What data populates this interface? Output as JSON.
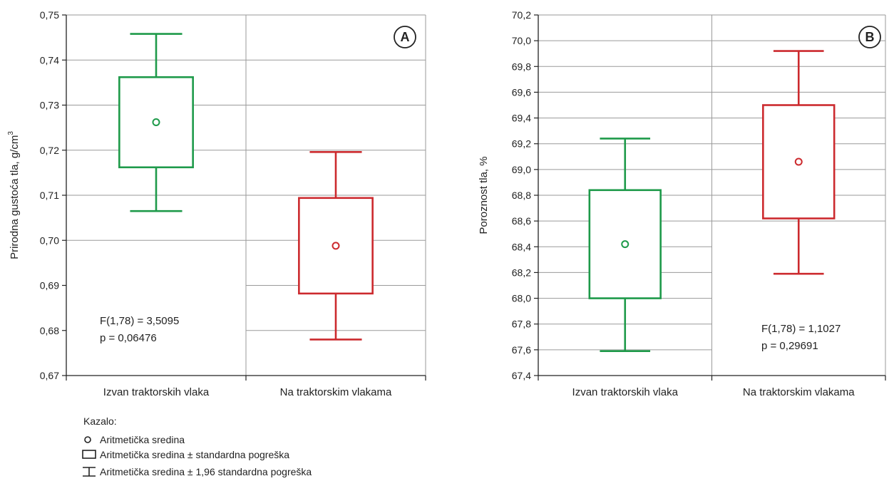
{
  "chart_data": [
    {
      "type": "box",
      "badge": "A",
      "ylabel": "Prirodna gustoća tla,  g/cm",
      "ylabel_sup": "3",
      "ylim": [
        0.67,
        0.75
      ],
      "y_ticks": [
        "0,67",
        "0,68",
        "0,69",
        "0,70",
        "0,71",
        "0,72",
        "0,73",
        "0,74",
        "0,75"
      ],
      "categories": [
        "Izvan traktorskih vlaka",
        "Na traktorskim vlakama"
      ],
      "series": [
        {
          "mean": 0.7262,
          "box_low": 0.7162,
          "box_high": 0.7362,
          "whisker_low": 0.7065,
          "whisker_high": 0.7458,
          "color": "#1e9a4a"
        },
        {
          "mean": 0.6988,
          "box_low": 0.6882,
          "box_high": 0.7094,
          "whisker_low": 0.678,
          "whisker_high": 0.7196,
          "color": "#cc2a2e"
        }
      ],
      "stat_lines": [
        "F(1,78) = 3,5095",
        "p = 0,06476"
      ]
    },
    {
      "type": "box",
      "badge": "B",
      "ylabel": "Poroznost tla,  %",
      "ylim": [
        67.4,
        70.2
      ],
      "y_ticks": [
        "67,4",
        "67,6",
        "67,8",
        "68,0",
        "68,2",
        "68,4",
        "68,6",
        "68,8",
        "69,0",
        "69,2",
        "69,4",
        "69,6",
        "69,8",
        "70,0",
        "70,2"
      ],
      "categories": [
        "Izvan traktorskih vlaka",
        "Na traktorskim vlakama"
      ],
      "series": [
        {
          "mean": 68.42,
          "box_low": 68.0,
          "box_high": 68.84,
          "whisker_low": 67.59,
          "whisker_high": 69.24,
          "color": "#1e9a4a"
        },
        {
          "mean": 69.06,
          "box_low": 68.62,
          "box_high": 69.5,
          "whisker_low": 68.19,
          "whisker_high": 69.92,
          "color": "#cc2a2e"
        }
      ],
      "stat_lines": [
        "F(1,78) = 1,1027",
        "p = 0,29691"
      ]
    }
  ],
  "legend": {
    "title": "Kazalo:",
    "items": [
      {
        "icon": "circle-icon",
        "label": "Aritmetička sredina"
      },
      {
        "icon": "rectangle-icon",
        "label": "Aritmetička sredina ± standardna pogreška"
      },
      {
        "icon": "whisker-icon",
        "label": "Aritmetička sredina ± 1,96 standardna pogreška"
      }
    ]
  }
}
